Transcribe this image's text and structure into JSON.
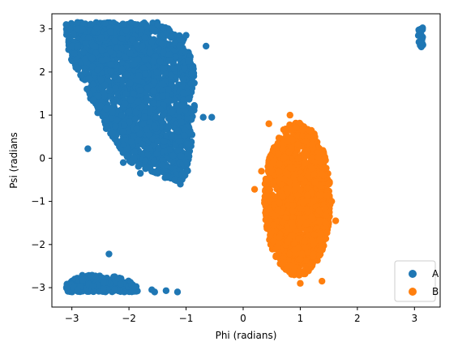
{
  "chart_data": {
    "type": "scatter",
    "title": "",
    "xlabel": "Phi (radians)",
    "ylabel": "Psi (radians",
    "xlim": [
      -3.35,
      3.45
    ],
    "ylim": [
      -3.45,
      3.35
    ],
    "xticks": [
      -3,
      -2,
      -1,
      0,
      1,
      2,
      3
    ],
    "yticks": [
      -3,
      -2,
      -1,
      0,
      1,
      2,
      3
    ],
    "grid": false,
    "legend_position": "lower-right",
    "series": [
      {
        "name": "A",
        "color": "#1f77b4",
        "clusters": [
          {
            "kind": "poly",
            "poly": [
              [
                -3.1,
                3.15
              ],
              [
                -1.5,
                3.15
              ],
              [
                -1.05,
                2.8
              ],
              [
                -0.85,
                2.1
              ],
              [
                -0.85,
                1.2
              ],
              [
                -0.95,
                -0.3
              ],
              [
                -1.1,
                -0.55
              ],
              [
                -1.4,
                -0.45
              ],
              [
                -1.65,
                -0.3
              ],
              [
                -1.9,
                -0.2
              ],
              [
                -2.1,
                0.1
              ],
              [
                -2.35,
                0.55
              ],
              [
                -2.5,
                0.9
              ],
              [
                -2.65,
                1.3
              ],
              [
                -2.8,
                1.8
              ],
              [
                -2.95,
                2.15
              ],
              [
                -3.1,
                2.4
              ]
            ],
            "count": 1900
          },
          {
            "kind": "poly",
            "poly": [
              [
                -3.1,
                -2.9
              ],
              [
                -2.8,
                -2.7
              ],
              [
                -2.5,
                -2.72
              ],
              [
                -2.2,
                -2.75
              ],
              [
                -1.9,
                -2.9
              ],
              [
                -1.8,
                -3.1
              ],
              [
                -3.1,
                -3.1
              ]
            ],
            "count": 320
          },
          {
            "kind": "poly",
            "poly": [
              [
                3.05,
                3.0
              ],
              [
                3.15,
                3.05
              ],
              [
                3.15,
                2.5
              ],
              [
                3.08,
                2.5
              ]
            ],
            "count": 20
          }
        ],
        "points": [
          [
            -0.65,
            2.6
          ],
          [
            -0.7,
            0.95
          ],
          [
            -0.55,
            0.95
          ],
          [
            -1.1,
            -0.6
          ],
          [
            -1.2,
            -0.5
          ],
          [
            -2.35,
            -2.22
          ],
          [
            -1.55,
            -3.1
          ],
          [
            -1.35,
            -3.07
          ],
          [
            -1.15,
            -3.1
          ],
          [
            -1.6,
            -3.05
          ],
          [
            -3.1,
            3.1
          ],
          [
            -2.9,
            3.15
          ],
          [
            -1.3,
            2.4
          ],
          [
            -2.72,
            0.22
          ],
          [
            -2.1,
            -0.1
          ],
          [
            -1.8,
            -0.35
          ],
          [
            -1.0,
            2.85
          ],
          [
            -2.4,
            1.15
          ],
          [
            -1.6,
            2.7
          ],
          [
            -2.2,
            0.35
          ]
        ]
      },
      {
        "name": "B",
        "color": "#ff7f0e",
        "clusters": [
          {
            "kind": "ellipse",
            "cx": 0.95,
            "cy": -0.95,
            "rx": 0.58,
            "ry": 1.78,
            "count": 1500
          }
        ],
        "points": [
          [
            0.2,
            -0.72
          ],
          [
            0.32,
            -0.3
          ],
          [
            0.45,
            0.8
          ],
          [
            1.62,
            -1.45
          ],
          [
            1.38,
            -2.85
          ],
          [
            1.0,
            -2.9
          ],
          [
            0.82,
            1.0
          ],
          [
            1.55,
            -1.0
          ],
          [
            0.4,
            -0.5
          ],
          [
            1.5,
            -0.6
          ]
        ]
      }
    ]
  }
}
